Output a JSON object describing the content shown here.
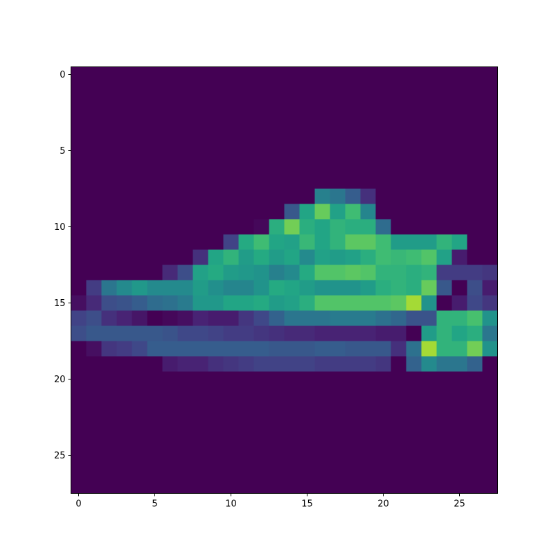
{
  "chart_data": {
    "type": "heatmap",
    "colormap": "viridis",
    "vmin": 0,
    "vmax": 255,
    "rows": 28,
    "cols": 28,
    "x_ticks": [
      0,
      5,
      10,
      15,
      20,
      25
    ],
    "y_ticks": [
      0,
      5,
      10,
      15,
      20,
      25
    ],
    "xlim": [
      -0.5,
      27.5
    ],
    "ylim": [
      27.5,
      -0.5
    ],
    "nonzero_rows": [
      {
        "row": 8,
        "start": 16,
        "values": [
          110,
          100,
          75,
          35
        ]
      },
      {
        "row": 9,
        "start": 14,
        "values": [
          70,
          150,
          195,
          145,
          175,
          115
        ]
      },
      {
        "row": 10,
        "start": 12,
        "values": [
          5,
          160,
          200,
          160,
          150,
          165,
          160,
          160,
          90
        ]
      },
      {
        "row": 11,
        "start": 10,
        "values": [
          50,
          155,
          175,
          150,
          145,
          170,
          150,
          165,
          190,
          190,
          175,
          140,
          140,
          140,
          165,
          150
        ]
      },
      {
        "row": 12,
        "start": 8,
        "values": [
          35,
          150,
          165,
          140,
          155,
          140,
          150,
          120,
          145,
          140,
          145,
          160,
          175,
          170,
          175,
          185,
          145,
          20
        ]
      },
      {
        "row": 13,
        "start": 6,
        "values": [
          30,
          60,
          145,
          155,
          140,
          135,
          130,
          110,
          120,
          155,
          185,
          185,
          190,
          185,
          165,
          165,
          160,
          165,
          45,
          45,
          45,
          40
        ]
      },
      {
        "row": 14,
        "start": 1,
        "values": [
          45,
          100,
          120,
          135,
          120,
          120,
          120,
          140,
          125,
          115,
          115,
          130,
          155,
          150,
          140,
          130,
          130,
          130,
          140,
          160,
          165,
          160,
          195,
          70,
          0,
          60,
          20
        ]
      },
      {
        "row": 15,
        "start": 0,
        "values": [
          10,
          30,
          60,
          65,
          75,
          90,
          95,
          105,
          135,
          135,
          150,
          150,
          155,
          140,
          145,
          160,
          185,
          185,
          185,
          185,
          185,
          190,
          220,
          130,
          0,
          20,
          55,
          40
        ]
      },
      {
        "row": 16,
        "start": 0,
        "values": [
          50,
          60,
          35,
          25,
          15,
          0,
          5,
          10,
          25,
          20,
          20,
          40,
          55,
          80,
          100,
          100,
          100,
          105,
          105,
          105,
          95,
          85,
          65,
          65,
          165,
          165,
          180,
          130
        ]
      },
      {
        "row": 17,
        "start": 0,
        "values": [
          60,
          70,
          70,
          70,
          70,
          70,
          65,
          55,
          55,
          50,
          45,
          45,
          40,
          35,
          30,
          30,
          25,
          25,
          25,
          25,
          20,
          20,
          0,
          140,
          165,
          150,
          160,
          100
        ]
      },
      {
        "row": 18,
        "start": 1,
        "values": [
          10,
          40,
          45,
          55,
          75,
          75,
          75,
          75,
          75,
          75,
          75,
          75,
          70,
          70,
          70,
          75,
          75,
          70,
          70,
          70,
          35,
          95,
          220,
          165,
          165,
          200,
          130
        ]
      },
      {
        "row": 19,
        "start": 6,
        "values": [
          20,
          25,
          25,
          35,
          40,
          45,
          50,
          50,
          50,
          50,
          45,
          45,
          45,
          45,
          40,
          0,
          80,
          120,
          100,
          100,
          80
        ]
      }
    ]
  }
}
